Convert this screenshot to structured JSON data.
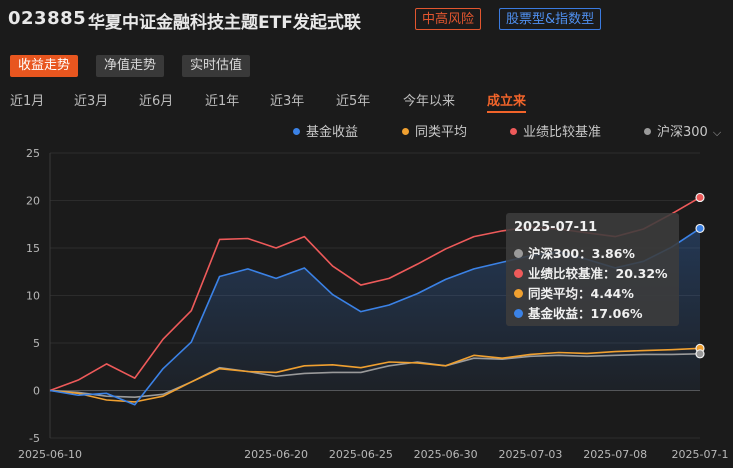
{
  "header": {
    "code": "023885",
    "name": "华夏中证金融科技主题ETF发起式联",
    "risk_tag": "中高风险",
    "type_tag": "股票型&指数型"
  },
  "view_tabs": [
    "收益走势",
    "净值走势",
    "实时估值"
  ],
  "active_view_tab": 0,
  "periods": [
    "近1月",
    "近3月",
    "近6月",
    "近1年",
    "近3年",
    "近5年",
    "今年以来",
    "成立来"
  ],
  "active_period": 7,
  "legend": [
    {
      "label": "基金收益",
      "color": "#3b82e6"
    },
    {
      "label": "同类平均",
      "color": "#f0a030"
    },
    {
      "label": "业绩比较基准",
      "color": "#ee5a5a"
    },
    {
      "label": "沪深300",
      "color": "#9a9a9a",
      "chevron": "⌵"
    }
  ],
  "tooltip": {
    "date": "2025-07-11",
    "rows": [
      {
        "label": "沪深300：3.86%",
        "color": "#9a9a9a"
      },
      {
        "label": "业绩比较基准：20.32%",
        "color": "#ee5a5a"
      },
      {
        "label": "同类平均：4.44%",
        "color": "#f0a030"
      },
      {
        "label": "基金收益：17.06%",
        "color": "#3b82e6"
      }
    ]
  },
  "chart_data": {
    "type": "area",
    "ylim": [
      -5,
      25
    ],
    "yticks": [
      "-5",
      "0",
      "5",
      "10",
      "15",
      "20",
      "25"
    ],
    "x": [
      "2025-06-10",
      "2025-06-11",
      "2025-06-12",
      "2025-06-13",
      "2025-06-16",
      "2025-06-17",
      "2025-06-18",
      "2025-06-19",
      "2025-06-20",
      "2025-06-23",
      "2025-06-24",
      "2025-06-25",
      "2025-06-26",
      "2025-06-27",
      "2025-06-30",
      "2025-07-01",
      "2025-07-02",
      "2025-07-03",
      "2025-07-04",
      "2025-07-07",
      "2025-07-08",
      "2025-07-09",
      "2025-07-10",
      "2025-07-11"
    ],
    "xtick_labels": [
      "2025-06-10",
      "2025-06-20",
      "2025-06-25",
      "2025-06-30",
      "2025-07-03",
      "2025-07-08",
      "2025-07-1"
    ],
    "series": [
      {
        "name": "基金收益",
        "color": "#3b82e6",
        "values": [
          0.0,
          -0.5,
          -0.3,
          -1.5,
          2.3,
          5.1,
          12.0,
          12.8,
          11.8,
          12.9,
          10.1,
          8.3,
          9.0,
          10.2,
          11.7,
          12.8,
          13.5,
          14.2,
          14.6,
          13.8,
          12.9,
          13.6,
          15.1,
          17.06
        ]
      },
      {
        "name": "同类平均",
        "color": "#f0a030",
        "values": [
          0.0,
          -0.3,
          -1.0,
          -1.2,
          -0.6,
          0.9,
          2.3,
          2.0,
          1.9,
          2.6,
          2.7,
          2.4,
          3.0,
          2.9,
          2.6,
          3.7,
          3.4,
          3.8,
          4.0,
          3.9,
          4.1,
          4.2,
          4.3,
          4.44
        ]
      },
      {
        "name": "业绩比较基准",
        "color": "#ee5a5a",
        "values": [
          0.0,
          1.1,
          2.8,
          1.3,
          5.4,
          8.4,
          15.9,
          16.0,
          15.0,
          16.2,
          13.1,
          11.1,
          11.8,
          13.3,
          14.9,
          16.2,
          16.8,
          17.2,
          17.0,
          16.6,
          16.2,
          17.0,
          18.6,
          20.32
        ]
      },
      {
        "name": "沪深300",
        "color": "#9a9a9a",
        "values": [
          0.0,
          -0.2,
          -0.6,
          -0.7,
          -0.4,
          0.9,
          2.4,
          2.0,
          1.5,
          1.8,
          1.9,
          1.9,
          2.6,
          3.0,
          2.6,
          3.4,
          3.3,
          3.6,
          3.7,
          3.6,
          3.7,
          3.8,
          3.8,
          3.86
        ]
      }
    ]
  }
}
